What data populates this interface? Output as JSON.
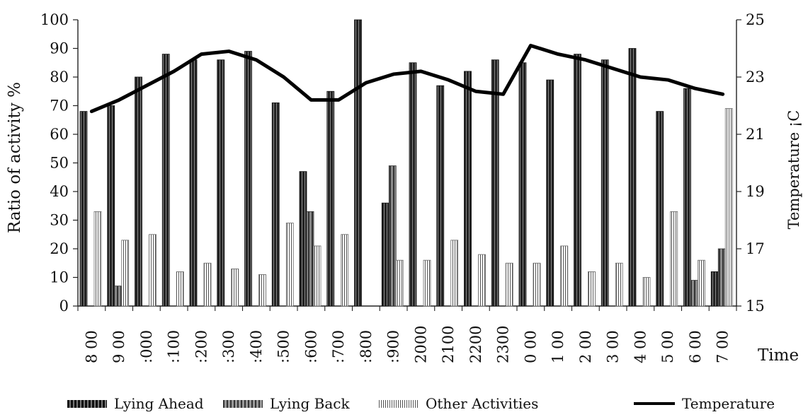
{
  "chart_data": {
    "type": "bar",
    "categories": [
      "8:00",
      "9:00",
      "10:00",
      "11:00",
      "12:00",
      "13:00",
      "14:00",
      "15:00",
      "16:00",
      "17:00",
      "18:00",
      "19:00",
      "20:00",
      "21:00",
      "22:00",
      "23:00",
      "0:00",
      "1:00",
      "2:00",
      "3:00",
      "4:00",
      "5:00",
      "6:00",
      "7:00"
    ],
    "tick_labels": [
      "8 00",
      "9 00",
      ":000",
      ":100",
      ":200",
      ":300",
      ":400",
      ":500",
      ":600",
      ":700",
      ":800",
      ":900",
      "2000",
      "2100",
      "2200",
      "2300",
      "0 00",
      "1 00",
      "2 00",
      "3 00",
      "4 00",
      "5 00",
      "6 00",
      "7 00"
    ],
    "series": [
      {
        "name": "Lying Ahead",
        "values": [
          68,
          70,
          80,
          88,
          86,
          86,
          89,
          71,
          47,
          75,
          100,
          36,
          85,
          77,
          82,
          86,
          85,
          79,
          88,
          86,
          90,
          68,
          76,
          12
        ],
        "color": "#1a1a1a"
      },
      {
        "name": "Lying Back",
        "values": [
          0,
          7,
          0,
          0,
          0,
          0,
          0,
          0,
          33,
          0,
          0,
          49,
          0,
          0,
          0,
          0,
          0,
          0,
          0,
          0,
          0,
          0,
          9,
          20
        ],
        "color": "#555555"
      },
      {
        "name": "Other Activities",
        "values": [
          33,
          23,
          25,
          12,
          15,
          13,
          11,
          29,
          21,
          25,
          0,
          16,
          16,
          23,
          18,
          15,
          15,
          21,
          12,
          15,
          10,
          33,
          16,
          69
        ],
        "color": "#aaaaaa"
      },
      {
        "name": "Temperature",
        "type": "line",
        "axis": "right",
        "values": [
          21.8,
          22.2,
          22.7,
          23.2,
          23.8,
          23.9,
          23.6,
          23.0,
          22.2,
          22.2,
          22.8,
          23.1,
          23.2,
          22.9,
          22.5,
          22.4,
          24.1,
          23.8,
          23.6,
          23.3,
          23.0,
          22.9,
          22.6,
          22.4
        ],
        "color": "#000000"
      }
    ],
    "ylabel": "Ratio of activity %",
    "y2label": "Temperature ¡C",
    "xlabel": "Time",
    "ylim": [
      0,
      100
    ],
    "y2lim": [
      15,
      25
    ],
    "y_ticks": [
      0,
      10,
      20,
      30,
      40,
      50,
      60,
      70,
      80,
      90,
      100
    ],
    "y2_ticks": [
      15,
      17,
      19,
      21,
      23,
      25
    ],
    "grid": false,
    "legend_position": "bottom"
  }
}
